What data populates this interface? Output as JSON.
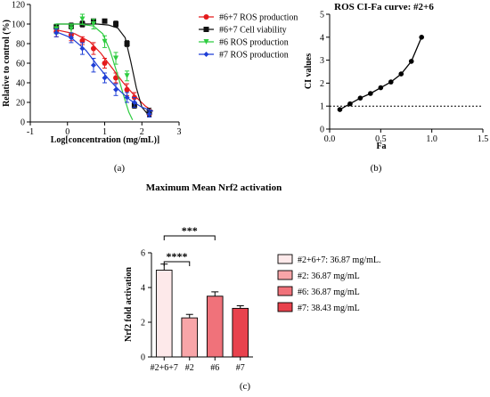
{
  "panels": {
    "a": "(a)",
    "b": "(b)",
    "c": "(c)"
  },
  "chart_data": [
    {
      "type": "line",
      "title": "",
      "xlabel": "Log[concentration (mg/mL)]",
      "ylabel": "Relative to control (%)",
      "xlim": [
        -1,
        3
      ],
      "ylim": [
        0,
        120
      ],
      "xticks": [
        -1,
        0,
        1,
        2,
        3
      ],
      "yticks": [
        0,
        20,
        40,
        60,
        80,
        100,
        120
      ],
      "legend_position": "right",
      "series": [
        {
          "name": "#6+7 ROS production",
          "color": "#e41a1c",
          "marker": "circle",
          "x": [
            -0.3,
            0.1,
            0.4,
            0.7,
            1.0,
            1.3,
            1.6,
            1.8,
            2.2
          ],
          "y": [
            92,
            89,
            83,
            75,
            60,
            45,
            33,
            25,
            8
          ],
          "err": [
            5,
            6,
            4,
            6,
            5,
            5,
            6,
            5,
            3
          ],
          "curve": [
            [
              -0.3,
              94
            ],
            [
              0.2,
              90
            ],
            [
              0.6,
              82
            ],
            [
              0.9,
              70
            ],
            [
              1.2,
              55
            ],
            [
              1.5,
              40
            ],
            [
              1.8,
              27
            ],
            [
              2.1,
              16
            ],
            [
              2.3,
              11
            ]
          ]
        },
        {
          "name": "#6+7 Cell viability",
          "color": "#111111",
          "marker": "square",
          "x": [
            -0.3,
            0.1,
            0.4,
            0.7,
            1.0,
            1.3,
            1.6,
            1.8,
            2.2
          ],
          "y": [
            97,
            98,
            100,
            103,
            103,
            100,
            80,
            17,
            10
          ],
          "err": [
            2,
            3,
            3,
            2,
            2,
            3,
            3,
            3,
            4
          ],
          "curve": [
            [
              -0.3,
              100
            ],
            [
              0.3,
              100
            ],
            [
              0.8,
              100
            ],
            [
              1.1,
              99
            ],
            [
              1.35,
              96
            ],
            [
              1.55,
              86
            ],
            [
              1.7,
              62
            ],
            [
              1.85,
              35
            ],
            [
              2.0,
              15
            ],
            [
              2.2,
              6
            ]
          ]
        },
        {
          "name": "#6 ROS production",
          "color": "#2ecc40",
          "marker": "triangle-down",
          "x": [
            -0.3,
            0.1,
            0.4,
            0.7,
            1.0,
            1.3,
            1.6
          ],
          "y": [
            95,
            95,
            105,
            100,
            82,
            65,
            47
          ],
          "err": [
            5,
            4,
            5,
            5,
            6,
            6,
            5
          ],
          "curve": [
            [
              -0.3,
              100
            ],
            [
              0.3,
              100
            ],
            [
              0.7,
              98
            ],
            [
              0.95,
              90
            ],
            [
              1.15,
              72
            ],
            [
              1.35,
              48
            ],
            [
              1.5,
              28
            ],
            [
              1.65,
              10
            ],
            [
              1.75,
              2
            ]
          ]
        },
        {
          "name": "#7 ROS production",
          "color": "#1f3fd6",
          "marker": "diamond",
          "x": [
            -0.3,
            0.1,
            0.4,
            0.7,
            1.0,
            1.3,
            1.6,
            1.8,
            2.2
          ],
          "y": [
            91,
            86,
            75,
            58,
            45,
            33,
            25,
            20,
            8
          ],
          "err": [
            4,
            5,
            6,
            7,
            5,
            6,
            5,
            5,
            3
          ],
          "curve": [
            [
              -0.3,
              92
            ],
            [
              0.1,
              86
            ],
            [
              0.5,
              73
            ],
            [
              0.8,
              58
            ],
            [
              1.1,
              44
            ],
            [
              1.4,
              32
            ],
            [
              1.7,
              22
            ],
            [
              2.0,
              15
            ],
            [
              2.3,
              11
            ]
          ]
        }
      ]
    },
    {
      "type": "line",
      "title": "ROS CI-Fa curve: #2+6",
      "xlabel": "Fa",
      "ylabel": "CI values",
      "xlim": [
        0,
        1.5
      ],
      "ylim": [
        0,
        5
      ],
      "xticks": [
        0.0,
        0.5,
        1.0,
        1.5
      ],
      "yticks": [
        0,
        1,
        2,
        3,
        4,
        5
      ],
      "reference_line_y": 1,
      "series": [
        {
          "name": "",
          "color": "#000000",
          "x": [
            0.1,
            0.2,
            0.3,
            0.4,
            0.5,
            0.6,
            0.7,
            0.8,
            0.9
          ],
          "y": [
            0.85,
            1.1,
            1.35,
            1.55,
            1.8,
            2.05,
            2.4,
            2.95,
            4.0
          ]
        }
      ]
    },
    {
      "type": "bar",
      "title": "Maximum Mean Nrf2 activation",
      "xlabel": "",
      "ylabel": "Nrf2 fold activation",
      "ylim": [
        0,
        6
      ],
      "yticks": [
        0,
        2,
        4,
        6
      ],
      "categories": [
        "#2+6+7",
        "#2",
        "#6",
        "#7"
      ],
      "values": [
        5.0,
        2.25,
        3.5,
        2.8
      ],
      "errors": [
        0.35,
        0.2,
        0.25,
        0.15
      ],
      "colors": [
        "#fde9ea",
        "#f8a5a8",
        "#f0727a",
        "#e8424d"
      ],
      "legend": [
        "#2+6+7: 36.87 mg/mL.",
        "#2: 36.87 mg/mL",
        "#6: 36.87 mg/mL",
        "#7: 38.43 mg/mL"
      ],
      "significance": [
        {
          "label": "****",
          "from": 0,
          "to": 1
        },
        {
          "label": "***",
          "from": 0,
          "to": 2
        }
      ]
    }
  ]
}
